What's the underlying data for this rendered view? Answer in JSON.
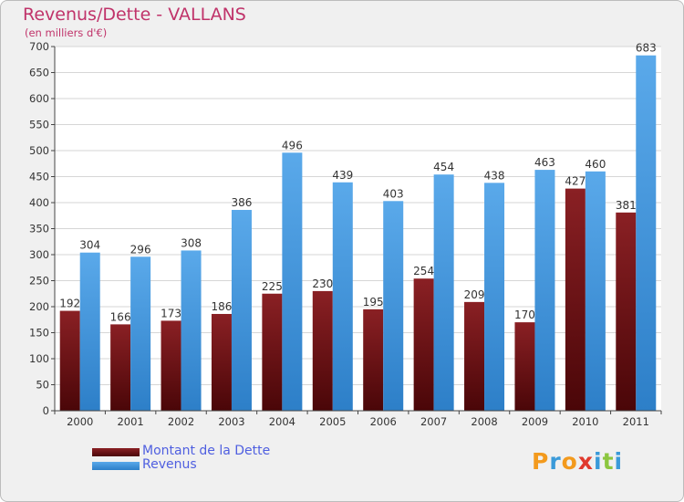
{
  "chart_data": {
    "type": "bar",
    "title": "Revenus/Dette - VALLANS",
    "subtitle": "(en milliers d'€)",
    "categories": [
      "2000",
      "2001",
      "2002",
      "2003",
      "2004",
      "2005",
      "2006",
      "2007",
      "2008",
      "2009",
      "2010",
      "2011"
    ],
    "series": [
      {
        "name": "Montant de la Dette",
        "color": "#7a1518",
        "values": [
          192,
          166,
          173,
          186,
          225,
          230,
          195,
          254,
          209,
          170,
          427,
          381
        ]
      },
      {
        "name": "Revenus",
        "color": "#3d93dd",
        "values": [
          304,
          296,
          308,
          386,
          496,
          439,
          403,
          454,
          438,
          463,
          460,
          683
        ]
      }
    ],
    "ylim": [
      0,
      700
    ],
    "yticks": [
      0,
      50,
      100,
      150,
      200,
      250,
      300,
      350,
      400,
      450,
      500,
      550,
      600,
      650,
      700
    ],
    "grid": true,
    "legend": "bottom-left"
  },
  "logo": {
    "letters": [
      "P",
      "r",
      "o",
      "x",
      "i",
      "t",
      "i"
    ],
    "colors": [
      "#f39a1d",
      "#3a9ad9",
      "#f39a1d",
      "#e0392d",
      "#3a9ad9",
      "#8cc63f",
      "#3a9ad9"
    ]
  }
}
